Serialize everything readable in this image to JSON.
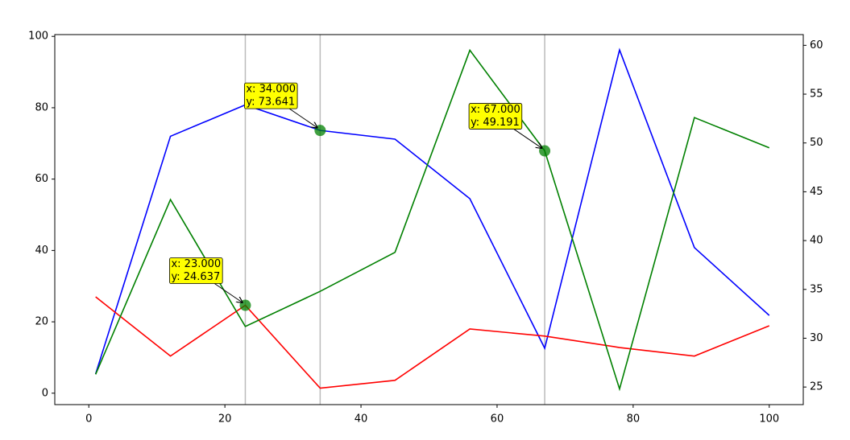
{
  "chart_data": {
    "type": "line",
    "x": [
      1,
      12,
      23,
      34,
      45,
      56,
      67,
      78,
      89,
      100
    ],
    "series": [
      {
        "color": "blue",
        "values": [
          5.4,
          72,
          80.8,
          73.641,
          71.2,
          54.5,
          12.6,
          96.2,
          40.8,
          21.8
        ]
      },
      {
        "color": "red",
        "values": [
          27,
          10.4,
          24.637,
          1.4,
          3.6,
          18,
          16,
          12.8,
          10.4,
          18.9
        ]
      },
      {
        "color": "green",
        "axis": "y2",
        "values": [
          26.3,
          44.2,
          31.2,
          34.8,
          38.8,
          59.5,
          49.191,
          24.8,
          52.6,
          49.5
        ]
      }
    ],
    "xlim": [
      -5,
      105
    ],
    "xticks": [
      0,
      20,
      40,
      60,
      80,
      100
    ],
    "ylim": [
      -3.2,
      100.5
    ],
    "yticks": [
      0,
      20,
      40,
      60,
      80,
      100
    ],
    "y2lim": [
      23.2,
      61.1
    ],
    "y2ticks": [
      25,
      30,
      35,
      40,
      45,
      50,
      55,
      60
    ],
    "annotations": [
      {
        "x": 23,
        "y": 24.637,
        "text": [
          "x: 23.000",
          "y: 24.637"
        ]
      },
      {
        "x": 34,
        "y": 73.641,
        "text": [
          "x: 34.000",
          "y: 73.641"
        ]
      },
      {
        "x": 67,
        "y": 49.191,
        "axis": "y2",
        "text": [
          "x: 67.000",
          "y: 49.191"
        ]
      }
    ],
    "annotation_color": "yellow",
    "marker_color": "green",
    "vline_color": "#bbbbbb"
  }
}
